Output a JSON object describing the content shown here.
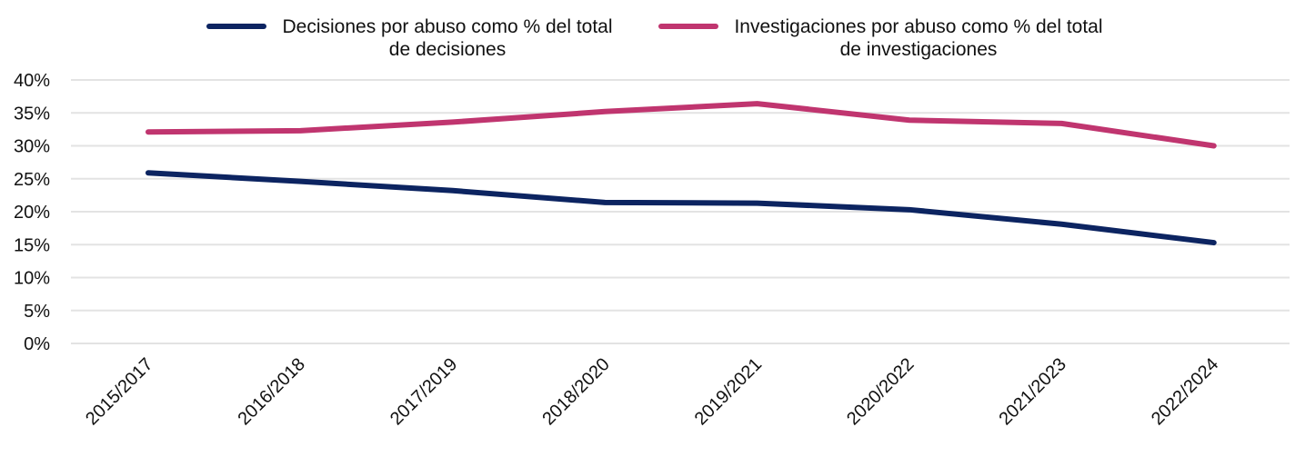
{
  "chart_data": {
    "type": "line",
    "title": "",
    "xlabel": "",
    "ylabel": "",
    "categories": [
      "2015/2017",
      "2016/2018",
      "2017/2019",
      "2018/2020",
      "2019/2021",
      "2020/2022",
      "2021/2023",
      "2022/2024"
    ],
    "series": [
      {
        "name": "Decisiones por abuso como % del total de decisiones",
        "legend_lines": [
          "Decisiones por abuso como % del total",
          "de decisiones"
        ],
        "color": "#0c2461",
        "values": [
          25.9,
          24.6,
          23.2,
          21.4,
          21.3,
          20.3,
          18.1,
          15.3
        ]
      },
      {
        "name": "Investigaciones por abuso como % del total de investigaciones",
        "legend_lines": [
          "Investigaciones por abuso como % del total",
          "de investigaciones"
        ],
        "color": "#c0356f",
        "values": [
          32.1,
          32.3,
          33.6,
          35.2,
          36.4,
          33.9,
          33.4,
          30.0
        ]
      }
    ],
    "ylim": [
      0,
      40
    ],
    "yticks": [
      0,
      5,
      10,
      15,
      20,
      25,
      30,
      35,
      40
    ],
    "ytick_labels": [
      "0%",
      "5%",
      "10%",
      "15%",
      "20%",
      "25%",
      "30%",
      "35%",
      "40%"
    ],
    "grid": true,
    "legend_position": "top"
  }
}
